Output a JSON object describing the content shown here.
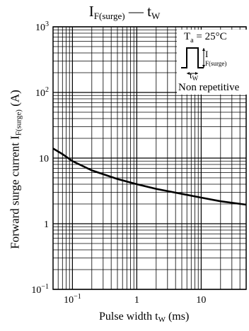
{
  "title": {
    "main": "I",
    "sub": "F(surge)",
    "sep": " — t",
    "sub2": "W"
  },
  "axes": {
    "y_title": {
      "main": "Forward surge current I",
      "sub": "F(surge)",
      "unit": "(A)"
    },
    "x_title": {
      "main": "Pulse width  t",
      "sub": "W",
      "unit": "  (ms)"
    },
    "x_ticks": [
      {
        "value": 0.1,
        "base": "10",
        "exp": "−1"
      },
      {
        "value": 1,
        "base": "1",
        "exp": ""
      },
      {
        "value": 10,
        "base": "10",
        "exp": ""
      }
    ],
    "y_ticks": [
      {
        "value": 0.1,
        "base": "10",
        "exp": "−1"
      },
      {
        "value": 1,
        "base": "1",
        "exp": ""
      },
      {
        "value": 10,
        "base": "10",
        "exp": ""
      },
      {
        "value": 100,
        "base": "10",
        "exp": "2"
      },
      {
        "value": 1000,
        "base": "10",
        "exp": "3"
      }
    ]
  },
  "inset": {
    "temp": "T",
    "temp_sub": "a",
    "temp_val": " = 25°C",
    "i_label": "I",
    "i_sub": "F(surge)",
    "tw_label": "t",
    "tw_sub": "W",
    "note": "Non repetitive"
  },
  "chart_data": {
    "type": "line",
    "title": "IF(surge) — tW",
    "xlabel": "Pulse width tW (ms)",
    "ylabel": "Forward surge current IF(surge) (A)",
    "xscale": "log",
    "yscale": "log",
    "xlim": [
      0.05,
      50
    ],
    "ylim": [
      0.1,
      1000
    ],
    "grid": true,
    "series": [
      {
        "x": [
          0.05,
          0.07,
          0.1,
          0.2,
          0.5,
          1,
          2,
          5,
          10,
          20,
          50
        ],
        "y": [
          14,
          11.5,
          9.0,
          6.5,
          4.8,
          4.0,
          3.4,
          2.85,
          2.5,
          2.2,
          1.95
        ]
      }
    ]
  },
  "colors": {
    "line": "#000000",
    "grid": "#000000",
    "background": "#ffffff"
  }
}
